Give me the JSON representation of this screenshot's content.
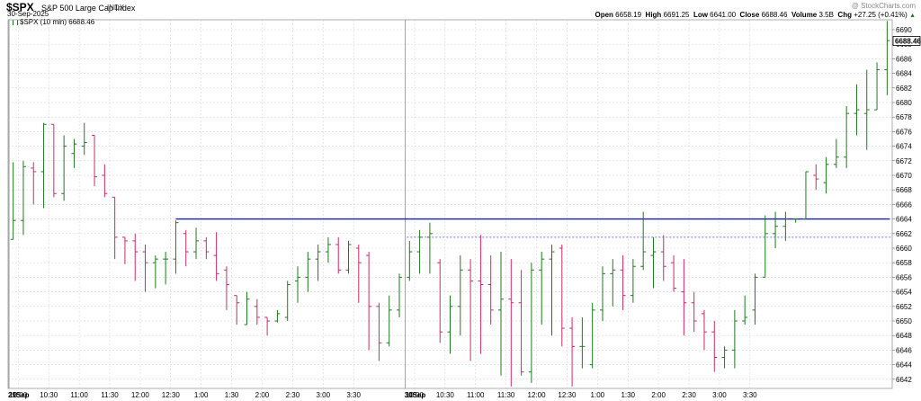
{
  "header": {
    "symbol": "$SPX",
    "name": "S&P 500 Large Cap Index",
    "exchange": "INDX",
    "date": "30-Sep-2025",
    "series_label": "$SPX (10 min) 6688.46",
    "watermark": "@ StockCharts.com",
    "open_label": "Open",
    "open": "6658.19",
    "high_label": "High",
    "high": "6691.25",
    "low_label": "Low",
    "low": "6641.00",
    "close_label": "Close",
    "close": "6688.46",
    "volume_label": "Volume",
    "volume": "3.5B",
    "chg_label": "Chg",
    "chg": "+27.25 (+0.41%)",
    "chg_arrow": "▲"
  },
  "colors": {
    "up": "#1f7a1f",
    "down": "#cc2a66",
    "resistance": "#1a1aa8",
    "price_line": "#4a4adc",
    "grid": "#cfcfcf"
  },
  "chart_data": {
    "type": "ohlc",
    "interval": "10 min",
    "ylim": [
      6640,
      6692
    ],
    "yticks": [
      6642,
      6644,
      6646,
      6648,
      6650,
      6652,
      6654,
      6656,
      6658,
      6660,
      6662,
      6664,
      6666,
      6668,
      6670,
      6672,
      6674,
      6676,
      6678,
      6680,
      6682,
      6684,
      6686,
      6688,
      6690
    ],
    "last_price_label": "6688.46",
    "xtick_labels": [
      "29Sep",
      "10:00",
      "10:30",
      "11:00",
      "11:30",
      "12:00",
      "12:30",
      "1:00",
      "1:30",
      "2:00",
      "2:30",
      "3:00",
      "3:30",
      "30Sep",
      "10:00",
      "10:30",
      "11:00",
      "11:30",
      "12:00",
      "12:30",
      "1:00",
      "1:30",
      "2:00",
      "2:30",
      "3:00",
      "3:30"
    ],
    "bars": [
      {
        "o": 6661.2,
        "h": 6671.8,
        "l": 6661.2,
        "c": 6663.8
      },
      {
        "o": 6663.8,
        "h": 6672.0,
        "l": 6661.8,
        "c": 6671.2
      },
      {
        "o": 6671.0,
        "h": 6671.8,
        "l": 6666.0,
        "c": 6670.5
      },
      {
        "o": 6670.5,
        "h": 6677.2,
        "l": 6665.5,
        "c": 6677.0
      },
      {
        "o": 6677.0,
        "h": 6677.0,
        "l": 6667.0,
        "c": 6667.5
      },
      {
        "o": 6667.5,
        "h": 6675.5,
        "l": 6666.5,
        "c": 6674.0
      },
      {
        "o": 6673.0,
        "h": 6675.0,
        "l": 6671.0,
        "c": 6674.3
      },
      {
        "o": 6674.0,
        "h": 6677.2,
        "l": 6672.8,
        "c": 6674.5
      },
      {
        "o": 6675.5,
        "h": 6675.5,
        "l": 6668.5,
        "c": 6669.8
      },
      {
        "o": 6670.0,
        "h": 6671.5,
        "l": 6667.0,
        "c": 6667.5
      },
      {
        "o": 6667.0,
        "h": 6667.0,
        "l": 6658.5,
        "c": 6661.5
      },
      {
        "o": 6661.5,
        "h": 6661.5,
        "l": 6657.8,
        "c": 6661.0
      },
      {
        "o": 6661.0,
        "h": 6662.0,
        "l": 6655.5,
        "c": 6659.5
      },
      {
        "o": 6659.5,
        "h": 6660.5,
        "l": 6654.0,
        "c": 6658.0
      },
      {
        "o": 6658.0,
        "h": 6659.0,
        "l": 6654.5,
        "c": 6658.5
      },
      {
        "o": 6658.5,
        "h": 6659.5,
        "l": 6655.0,
        "c": 6658.5
      },
      {
        "o": 6658.5,
        "h": 6663.8,
        "l": 6656.5,
        "c": 6663.5
      },
      {
        "o": 6662.0,
        "h": 6662.5,
        "l": 6657.5,
        "c": 6659.5
      },
      {
        "o": 6659.5,
        "h": 6662.8,
        "l": 6658.5,
        "c": 6661.0
      },
      {
        "o": 6661.0,
        "h": 6661.5,
        "l": 6658.5,
        "c": 6659.5
      },
      {
        "o": 6659.0,
        "h": 6662.2,
        "l": 6655.5,
        "c": 6656.5
      },
      {
        "o": 6657.0,
        "h": 6657.5,
        "l": 6651.5,
        "c": 6655.0
      },
      {
        "o": 6653.5,
        "h": 6653.5,
        "l": 6649.5,
        "c": 6652.5
      },
      {
        "o": 6649.5,
        "h": 6654.0,
        "l": 6649.5,
        "c": 6653.0
      },
      {
        "o": 6652.0,
        "h": 6653.0,
        "l": 6649.5,
        "c": 6650.5
      },
      {
        "o": 6650.5,
        "h": 6650.5,
        "l": 6648.0,
        "c": 6650.0
      },
      {
        "o": 6650.0,
        "h": 6651.5,
        "l": 6649.8,
        "c": 6651.0
      },
      {
        "o": 6650.5,
        "h": 6655.5,
        "l": 6650.0,
        "c": 6655.0
      },
      {
        "o": 6655.5,
        "h": 6657.5,
        "l": 6652.5,
        "c": 6656.0
      },
      {
        "o": 6656.0,
        "h": 6659.5,
        "l": 6654.0,
        "c": 6658.5
      },
      {
        "o": 6658.5,
        "h": 6660.5,
        "l": 6655.5,
        "c": 6659.5
      },
      {
        "o": 6659.5,
        "h": 6661.5,
        "l": 6658.0,
        "c": 6660.5
      },
      {
        "o": 6660.5,
        "h": 6661.5,
        "l": 6656.5,
        "c": 6657.0
      },
      {
        "o": 6657.0,
        "h": 6661.0,
        "l": 6656.5,
        "c": 6660.5
      },
      {
        "o": 6660.0,
        "h": 6660.5,
        "l": 6652.5,
        "c": 6658.0
      },
      {
        "o": 6659.0,
        "h": 6659.5,
        "l": 6646.0,
        "c": 6652.0
      },
      {
        "o": 6652.0,
        "h": 6652.5,
        "l": 6644.5,
        "c": 6647.0
      },
      {
        "o": 6647.0,
        "h": 6653.5,
        "l": 6646.5,
        "c": 6651.5
      },
      {
        "o": 6651.5,
        "h": 6656.5,
        "l": 6650.5,
        "c": 6656.0
      },
      {
        "o": 6656.0,
        "h": 6661.0,
        "l": 6655.5,
        "c": 6659.5
      },
      {
        "o": 6659.5,
        "h": 6662.5,
        "l": 6656.5,
        "c": 6661.5
      },
      {
        "o": 6661.5,
        "h": 6663.5,
        "l": 6656.5,
        "c": 6662.0
      },
      {
        "o": 6658.0,
        "h": 6658.5,
        "l": 6647.0,
        "c": 6648.5
      },
      {
        "o": 6648.5,
        "h": 6653.5,
        "l": 6645.5,
        "c": 6652.0
      },
      {
        "o": 6652.0,
        "h": 6659.0,
        "l": 6648.0,
        "c": 6657.0
      },
      {
        "o": 6657.0,
        "h": 6658.5,
        "l": 6644.5,
        "c": 6655.5
      },
      {
        "o": 6655.5,
        "h": 6661.8,
        "l": 6645.5,
        "c": 6655.0
      },
      {
        "o": 6655.0,
        "h": 6659.0,
        "l": 6649.5,
        "c": 6651.5
      },
      {
        "o": 6651.5,
        "h": 6659.5,
        "l": 6642.5,
        "c": 6653.0
      },
      {
        "o": 6653.0,
        "h": 6658.5,
        "l": 6641.0,
        "c": 6652.5
      },
      {
        "o": 6652.5,
        "h": 6657.0,
        "l": 6642.5,
        "c": 6643.0
      },
      {
        "o": 6643.0,
        "h": 6658.0,
        "l": 6641.5,
        "c": 6657.0
      },
      {
        "o": 6657.0,
        "h": 6659.5,
        "l": 6649.5,
        "c": 6658.5
      },
      {
        "o": 6658.5,
        "h": 6660.5,
        "l": 6648.0,
        "c": 6659.5
      },
      {
        "o": 6660.0,
        "h": 6660.5,
        "l": 6646.5,
        "c": 6649.0
      },
      {
        "o": 6649.0,
        "h": 6650.5,
        "l": 6641.0,
        "c": 6646.5
      },
      {
        "o": 6646.5,
        "h": 6650.5,
        "l": 6643.5,
        "c": 6646.5
      },
      {
        "o": 6644.0,
        "h": 6652.5,
        "l": 6643.5,
        "c": 6651.5
      },
      {
        "o": 6651.5,
        "h": 6657.5,
        "l": 6650.0,
        "c": 6656.5
      },
      {
        "o": 6656.5,
        "h": 6658.5,
        "l": 6652.0,
        "c": 6657.0
      },
      {
        "o": 6657.0,
        "h": 6659.0,
        "l": 6651.5,
        "c": 6653.5
      },
      {
        "o": 6653.5,
        "h": 6658.5,
        "l": 6652.5,
        "c": 6657.5
      },
      {
        "o": 6657.5,
        "h": 6665.0,
        "l": 6657.0,
        "c": 6659.5
      },
      {
        "o": 6659.0,
        "h": 6661.5,
        "l": 6654.5,
        "c": 6659.5
      },
      {
        "o": 6659.5,
        "h": 6661.8,
        "l": 6655.5,
        "c": 6657.5
      },
      {
        "o": 6658.0,
        "h": 6659.0,
        "l": 6654.0,
        "c": 6654.5
      },
      {
        "o": 6654.0,
        "h": 6658.5,
        "l": 6648.0,
        "c": 6652.5
      },
      {
        "o": 6652.5,
        "h": 6654.0,
        "l": 6648.5,
        "c": 6650.0
      },
      {
        "o": 6651.0,
        "h": 6651.5,
        "l": 6646.0,
        "c": 6648.5
      },
      {
        "o": 6648.5,
        "h": 6650.0,
        "l": 6643.0,
        "c": 6645.0
      },
      {
        "o": 6645.0,
        "h": 6646.5,
        "l": 6643.5,
        "c": 6646.0
      },
      {
        "o": 6646.0,
        "h": 6651.5,
        "l": 6643.5,
        "c": 6650.0
      },
      {
        "o": 6650.0,
        "h": 6653.5,
        "l": 6649.5,
        "c": 6650.5
      },
      {
        "o": 6651.5,
        "h": 6656.5,
        "l": 6649.5,
        "c": 6656.0
      },
      {
        "o": 6656.0,
        "h": 6664.5,
        "l": 6656.0,
        "c": 6662.0
      },
      {
        "o": 6662.0,
        "h": 6665.0,
        "l": 6660.0,
        "c": 6663.0
      },
      {
        "o": 6663.0,
        "h": 6665.0,
        "l": 6661.0,
        "c": 6664.0
      },
      {
        "o": 6664.0,
        "h": 6664.0,
        "l": 6663.5,
        "c": 6664.0
      },
      {
        "o": 6664.0,
        "h": 6670.5,
        "l": 6664.0,
        "c": 6670.5
      },
      {
        "o": 6670.0,
        "h": 6671.5,
        "l": 6668.0,
        "c": 6669.5
      },
      {
        "o": 6669.0,
        "h": 6672.5,
        "l": 6667.5,
        "c": 6671.5
      },
      {
        "o": 6671.5,
        "h": 6675.0,
        "l": 6671.0,
        "c": 6672.5
      },
      {
        "o": 6672.5,
        "h": 6679.5,
        "l": 6671.0,
        "c": 6678.5
      },
      {
        "o": 6678.5,
        "h": 6682.5,
        "l": 6675.5,
        "c": 6679.0
      },
      {
        "o": 6678.5,
        "h": 6684.5,
        "l": 6673.5,
        "c": 6679.0
      },
      {
        "o": 6679.0,
        "h": 6685.5,
        "l": 6679.0,
        "c": 6684.5
      },
      {
        "o": 6684.5,
        "h": 6691.2,
        "l": 6681.0,
        "c": 6688.5
      }
    ],
    "lines": [
      {
        "kind": "resistance",
        "y": 6664.0
      },
      {
        "kind": "dotted",
        "y": 6661.5
      }
    ]
  }
}
